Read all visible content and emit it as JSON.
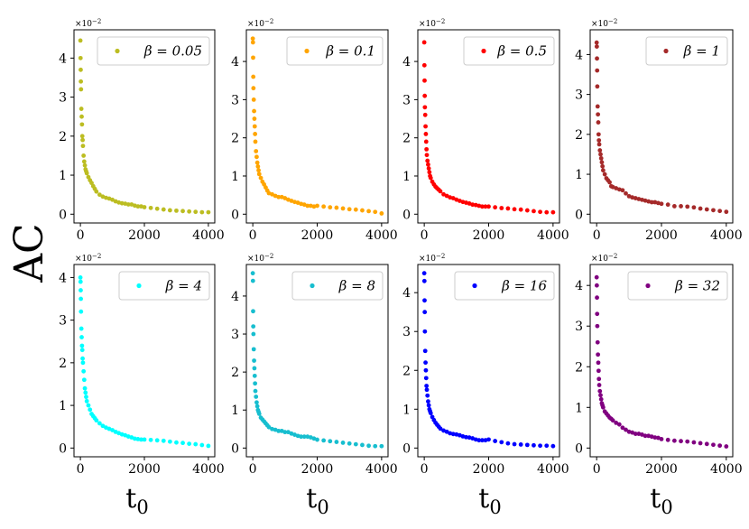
{
  "figure": {
    "ylabel": "AC",
    "xlabel": "t",
    "xlabel_sub": "0",
    "multiplier": "×10",
    "multiplier_exp": "−2"
  },
  "chart_data": [
    {
      "type": "scatter",
      "title": "",
      "legend": "β = 0.05",
      "legend_position": "top-right",
      "color": "#bcbd22",
      "xlim": [
        0,
        4000
      ],
      "ylim": [
        0,
        4.5
      ],
      "xticks": [
        "0",
        "2000",
        "4000"
      ],
      "yticks": [
        "0",
        "1",
        "2",
        "3",
        "4"
      ],
      "x": [
        0,
        5,
        10,
        15,
        20,
        30,
        40,
        50,
        60,
        70,
        80,
        100,
        120,
        140,
        160,
        180,
        200,
        250,
        300,
        350,
        400,
        450,
        500,
        600,
        700,
        800,
        900,
        1000,
        1100,
        1200,
        1300,
        1400,
        1500,
        1600,
        1700,
        1800,
        1900,
        2000,
        2200,
        2400,
        2600,
        2800,
        3000,
        3200,
        3400,
        3600,
        3800,
        4000
      ],
      "y": [
        4.45,
        4.0,
        3.7,
        3.4,
        3.2,
        2.7,
        2.5,
        2.3,
        2.0,
        1.9,
        1.75,
        1.5,
        1.35,
        1.25,
        1.15,
        1.1,
        1.05,
        0.95,
        0.87,
        0.8,
        0.72,
        0.65,
        0.58,
        0.5,
        0.45,
        0.42,
        0.4,
        0.37,
        0.33,
        0.3,
        0.28,
        0.27,
        0.25,
        0.25,
        0.22,
        0.2,
        0.2,
        0.18,
        0.16,
        0.14,
        0.12,
        0.1,
        0.09,
        0.08,
        0.07,
        0.06,
        0.05,
        0.05
      ]
    },
    {
      "type": "scatter",
      "title": "",
      "legend": "β = 0.1",
      "legend_position": "top-right",
      "color": "#ffa500",
      "xlim": [
        0,
        4000
      ],
      "ylim": [
        0,
        4.6
      ],
      "xticks": [
        "0",
        "2000",
        "4000"
      ],
      "yticks": [
        "0",
        "1",
        "2",
        "3",
        "4"
      ],
      "x": [
        0,
        5,
        10,
        15,
        20,
        30,
        40,
        50,
        60,
        70,
        80,
        100,
        120,
        140,
        160,
        180,
        200,
        250,
        300,
        350,
        400,
        450,
        500,
        600,
        700,
        800,
        900,
        1000,
        1100,
        1200,
        1300,
        1400,
        1500,
        1600,
        1700,
        1800,
        1900,
        2000,
        2200,
        2400,
        2600,
        2800,
        3000,
        3200,
        3400,
        3600,
        3800,
        4000
      ],
      "y": [
        4.6,
        4.5,
        4.1,
        3.6,
        3.3,
        3.0,
        2.7,
        2.5,
        2.3,
        2.1,
        1.9,
        1.65,
        1.5,
        1.35,
        1.25,
        1.15,
        1.05,
        0.95,
        0.85,
        0.78,
        0.7,
        0.62,
        0.55,
        0.52,
        0.48,
        0.45,
        0.45,
        0.42,
        0.38,
        0.35,
        0.32,
        0.3,
        0.27,
        0.25,
        0.22,
        0.22,
        0.2,
        0.22,
        0.2,
        0.18,
        0.17,
        0.15,
        0.13,
        0.12,
        0.1,
        0.08,
        0.06,
        0.02
      ]
    },
    {
      "type": "scatter",
      "title": "",
      "legend": "β = 0.5",
      "legend_position": "top-right",
      "color": "#ff0000",
      "xlim": [
        0,
        4000
      ],
      "ylim": [
        0,
        4.6
      ],
      "xticks": [
        "0",
        "2000",
        "4000"
      ],
      "yticks": [
        "0",
        "1",
        "2",
        "3",
        "4"
      ],
      "x": [
        0,
        5,
        10,
        15,
        20,
        30,
        40,
        50,
        60,
        70,
        80,
        100,
        120,
        140,
        160,
        180,
        200,
        250,
        300,
        350,
        400,
        450,
        500,
        600,
        700,
        800,
        900,
        1000,
        1100,
        1200,
        1300,
        1400,
        1500,
        1600,
        1700,
        1800,
        1900,
        2000,
        2200,
        2400,
        2600,
        2800,
        3000,
        3200,
        3400,
        3600,
        3800,
        4000
      ],
      "y": [
        4.5,
        3.9,
        3.5,
        3.1,
        2.8,
        2.6,
        2.3,
        2.1,
        1.9,
        1.7,
        1.55,
        1.4,
        1.3,
        1.2,
        1.1,
        1.0,
        0.95,
        0.85,
        0.78,
        0.72,
        0.68,
        0.64,
        0.6,
        0.52,
        0.48,
        0.44,
        0.42,
        0.38,
        0.35,
        0.32,
        0.3,
        0.28,
        0.25,
        0.24,
        0.22,
        0.2,
        0.2,
        0.2,
        0.18,
        0.16,
        0.15,
        0.13,
        0.12,
        0.1,
        0.08,
        0.06,
        0.05,
        0.05
      ]
    },
    {
      "type": "scatter",
      "title": "",
      "legend": "β = 1",
      "legend_position": "top-right",
      "color": "#a52a2a",
      "xlim": [
        0,
        4000
      ],
      "ylim": [
        0,
        4.4
      ],
      "xticks": [
        "0",
        "2000",
        "4000"
      ],
      "yticks": [
        "0",
        "1",
        "2",
        "3",
        "4"
      ],
      "x": [
        0,
        5,
        10,
        15,
        20,
        30,
        40,
        50,
        60,
        70,
        80,
        100,
        120,
        140,
        160,
        180,
        200,
        250,
        300,
        350,
        400,
        450,
        500,
        600,
        700,
        800,
        900,
        1000,
        1100,
        1200,
        1300,
        1400,
        1500,
        1600,
        1700,
        1800,
        1900,
        2000,
        2200,
        2400,
        2600,
        2800,
        3000,
        3200,
        3400,
        3600,
        3800,
        4000
      ],
      "y": [
        4.3,
        4.2,
        3.9,
        3.6,
        3.2,
        2.7,
        2.5,
        2.3,
        2.0,
        1.85,
        1.75,
        1.6,
        1.5,
        1.4,
        1.3,
        1.2,
        1.1,
        1.0,
        0.9,
        0.85,
        0.8,
        0.7,
        0.68,
        0.65,
        0.62,
        0.6,
        0.52,
        0.45,
        0.42,
        0.4,
        0.38,
        0.36,
        0.34,
        0.32,
        0.3,
        0.3,
        0.28,
        0.26,
        0.24,
        0.2,
        0.2,
        0.19,
        0.17,
        0.14,
        0.12,
        0.1,
        0.08,
        0.06
      ]
    },
    {
      "type": "scatter",
      "title": "",
      "legend": "β = 4",
      "legend_position": "top-right",
      "color": "#00ffff",
      "xlim": [
        0,
        4000
      ],
      "ylim": [
        0,
        4.1
      ],
      "xticks": [
        "0",
        "2000",
        "4000"
      ],
      "yticks": [
        "0",
        "1",
        "2",
        "3",
        "4"
      ],
      "x": [
        0,
        5,
        10,
        15,
        20,
        30,
        40,
        50,
        60,
        70,
        80,
        100,
        120,
        140,
        160,
        180,
        200,
        250,
        300,
        350,
        400,
        450,
        500,
        600,
        700,
        800,
        900,
        1000,
        1100,
        1200,
        1300,
        1400,
        1500,
        1600,
        1700,
        1800,
        1900,
        2000,
        2200,
        2400,
        2600,
        2800,
        3000,
        3200,
        3400,
        3600,
        3800,
        4000
      ],
      "y": [
        4.0,
        3.9,
        3.7,
        3.5,
        3.2,
        2.8,
        2.6,
        2.4,
        2.3,
        2.1,
        2.0,
        1.8,
        1.6,
        1.4,
        1.3,
        1.2,
        1.1,
        1.0,
        0.9,
        0.8,
        0.75,
        0.7,
        0.65,
        0.58,
        0.52,
        0.48,
        0.45,
        0.42,
        0.38,
        0.35,
        0.32,
        0.3,
        0.27,
        0.25,
        0.22,
        0.21,
        0.2,
        0.2,
        0.19,
        0.18,
        0.17,
        0.15,
        0.13,
        0.12,
        0.1,
        0.09,
        0.07,
        0.05
      ]
    },
    {
      "type": "scatter",
      "title": "",
      "legend": "β = 8",
      "legend_position": "top-right",
      "color": "#17becf",
      "xlim": [
        0,
        4000
      ],
      "ylim": [
        0,
        4.6
      ],
      "xticks": [
        "0",
        "2000",
        "4000"
      ],
      "yticks": [
        "0",
        "1",
        "2",
        "3",
        "4"
      ],
      "x": [
        0,
        5,
        10,
        15,
        20,
        30,
        40,
        50,
        60,
        70,
        80,
        100,
        120,
        140,
        160,
        180,
        200,
        250,
        300,
        350,
        400,
        450,
        500,
        600,
        700,
        800,
        900,
        1000,
        1100,
        1200,
        1300,
        1400,
        1500,
        1600,
        1700,
        1800,
        1900,
        2000,
        2200,
        2400,
        2600,
        2800,
        3000,
        3200,
        3400,
        3600,
        3800,
        4000
      ],
      "y": [
        4.6,
        4.4,
        3.6,
        3.2,
        3.0,
        2.6,
        2.3,
        2.1,
        1.9,
        1.7,
        1.5,
        1.35,
        1.2,
        1.1,
        1.0,
        0.95,
        0.9,
        0.8,
        0.75,
        0.7,
        0.65,
        0.6,
        0.55,
        0.5,
        0.48,
        0.45,
        0.45,
        0.42,
        0.42,
        0.38,
        0.35,
        0.32,
        0.3,
        0.3,
        0.3,
        0.28,
        0.25,
        0.22,
        0.2,
        0.18,
        0.16,
        0.14,
        0.12,
        0.1,
        0.08,
        0.06,
        0.05,
        0.05
      ]
    },
    {
      "type": "scatter",
      "title": "",
      "legend": "β = 16",
      "legend_position": "top-right",
      "color": "#0000ff",
      "xlim": [
        0,
        4000
      ],
      "ylim": [
        0,
        4.5
      ],
      "xticks": [
        "0",
        "2000",
        "4000"
      ],
      "yticks": [
        "0",
        "1",
        "2",
        "3",
        "4"
      ],
      "x": [
        0,
        5,
        10,
        15,
        20,
        30,
        40,
        50,
        60,
        70,
        80,
        100,
        120,
        140,
        160,
        180,
        200,
        250,
        300,
        350,
        400,
        450,
        500,
        600,
        700,
        800,
        900,
        1000,
        1100,
        1200,
        1300,
        1400,
        1500,
        1600,
        1700,
        1800,
        1900,
        2000,
        2200,
        2400,
        2600,
        2800,
        3000,
        3200,
        3400,
        3600,
        3800,
        4000
      ],
      "y": [
        4.5,
        4.3,
        3.8,
        3.5,
        3.0,
        2.5,
        2.2,
        2.0,
        1.8,
        1.6,
        1.5,
        1.35,
        1.2,
        1.1,
        1.0,
        0.95,
        0.9,
        0.8,
        0.72,
        0.65,
        0.6,
        0.55,
        0.5,
        0.45,
        0.42,
        0.38,
        0.36,
        0.35,
        0.33,
        0.3,
        0.28,
        0.27,
        0.25,
        0.22,
        0.2,
        0.2,
        0.2,
        0.22,
        0.18,
        0.15,
        0.12,
        0.1,
        0.09,
        0.08,
        0.07,
        0.06,
        0.06,
        0.05
      ]
    },
    {
      "type": "scatter",
      "title": "",
      "legend": "β = 32",
      "legend_position": "top-right",
      "color": "#800080",
      "xlim": [
        0,
        4000
      ],
      "ylim": [
        0,
        4.3
      ],
      "xticks": [
        "0",
        "2000",
        "4000"
      ],
      "yticks": [
        "0",
        "1",
        "2",
        "3",
        "4"
      ],
      "x": [
        0,
        5,
        10,
        15,
        20,
        30,
        40,
        50,
        60,
        70,
        80,
        100,
        120,
        140,
        160,
        180,
        200,
        250,
        300,
        350,
        400,
        450,
        500,
        600,
        700,
        800,
        900,
        1000,
        1100,
        1200,
        1300,
        1400,
        1500,
        1600,
        1700,
        1800,
        1900,
        2000,
        2200,
        2400,
        2600,
        2800,
        3000,
        3200,
        3400,
        3600,
        3800,
        4000
      ],
      "y": [
        4.2,
        4.0,
        3.7,
        3.3,
        3.0,
        2.6,
        2.3,
        2.1,
        1.9,
        1.7,
        1.55,
        1.4,
        1.3,
        1.2,
        1.1,
        1.05,
        1.0,
        0.9,
        0.85,
        0.8,
        0.75,
        0.72,
        0.68,
        0.62,
        0.58,
        0.5,
        0.45,
        0.4,
        0.38,
        0.35,
        0.35,
        0.33,
        0.3,
        0.3,
        0.28,
        0.26,
        0.25,
        0.22,
        0.2,
        0.18,
        0.17,
        0.16,
        0.14,
        0.12,
        0.1,
        0.08,
        0.06,
        0.04
      ]
    }
  ]
}
